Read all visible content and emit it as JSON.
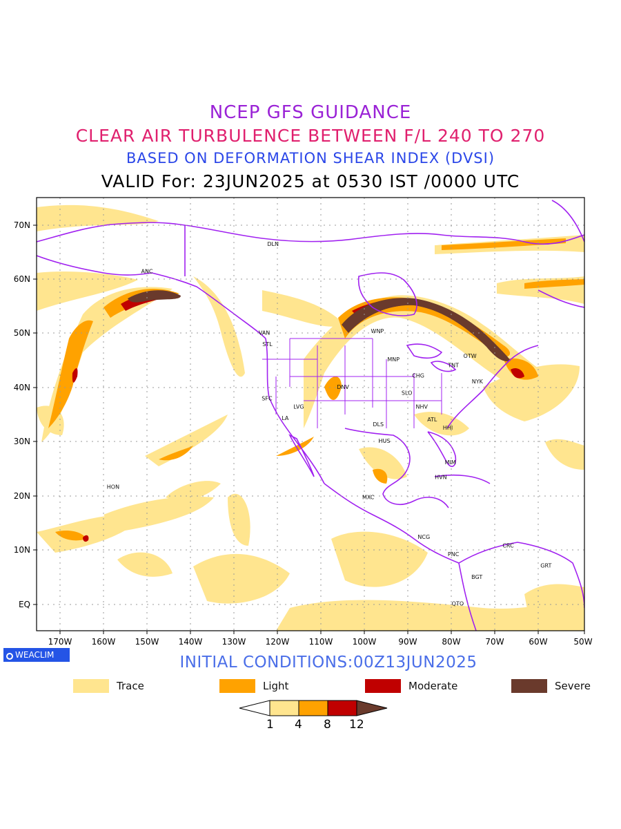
{
  "header": {
    "line1": "NCEP GFS GUIDANCE",
    "line2": "CLEAR AIR TURBULENCE BETWEEN F/L 240 TO 270",
    "line3": "BASED ON DEFORMATION SHEAR INDEX (DVSI)",
    "line4": "VALID For: 23JUN2025 at 0530 IST /0000 UTC"
  },
  "axes": {
    "lat_labels": [
      "70N",
      "60N",
      "50N",
      "40N",
      "30N",
      "20N",
      "10N",
      "EQ"
    ],
    "lon_labels": [
      "170W",
      "160W",
      "150W",
      "140W",
      "130W",
      "120W",
      "110W",
      "100W",
      "90W",
      "80W",
      "70W",
      "60W",
      "50W"
    ]
  },
  "stations": [
    {
      "code": "DLN",
      "lon": -121,
      "lat": 66
    },
    {
      "code": "ANC",
      "lon": -150,
      "lat": 61
    },
    {
      "code": "VAN",
      "lon": -123,
      "lat": 49.7
    },
    {
      "code": "STL",
      "lon": -122.3,
      "lat": 47.6
    },
    {
      "code": "WNP",
      "lon": -97,
      "lat": 50
    },
    {
      "code": "OTW",
      "lon": -75.7,
      "lat": 45.4
    },
    {
      "code": "MNP",
      "lon": -93.3,
      "lat": 44.8
    },
    {
      "code": "TNT",
      "lon": -79.5,
      "lat": 43.7
    },
    {
      "code": "CHG",
      "lon": -87.6,
      "lat": 41.8
    },
    {
      "code": "NYK",
      "lon": -74,
      "lat": 40.7
    },
    {
      "code": "DNV",
      "lon": -104.9,
      "lat": 39.7
    },
    {
      "code": "SFC",
      "lon": -122.4,
      "lat": 37.6
    },
    {
      "code": "SLO",
      "lon": -90.2,
      "lat": 38.6
    },
    {
      "code": "LVG",
      "lon": -115.1,
      "lat": 36.1
    },
    {
      "code": "NHV",
      "lon": -86.8,
      "lat": 36.1
    },
    {
      "code": "LA",
      "lon": -118.2,
      "lat": 34
    },
    {
      "code": "DLS",
      "lon": -96.8,
      "lat": 32.8
    },
    {
      "code": "ATL",
      "lon": -84.4,
      "lat": 33.7
    },
    {
      "code": "HHI",
      "lon": -80.8,
      "lat": 32.2
    },
    {
      "code": "HUS",
      "lon": -95.4,
      "lat": 29.8
    },
    {
      "code": "MIM",
      "lon": -80.2,
      "lat": 25.8
    },
    {
      "code": "HVN",
      "lon": -82.4,
      "lat": 23.1
    },
    {
      "code": "HON",
      "lon": -157.8,
      "lat": 21.3
    },
    {
      "code": "MXC",
      "lon": -99.1,
      "lat": 19.4
    },
    {
      "code": "NCG",
      "lon": -86.3,
      "lat": 12.1
    },
    {
      "code": "CRC",
      "lon": -66.9,
      "lat": 10.5
    },
    {
      "code": "PNC",
      "lon": -79.5,
      "lat": 8.9
    },
    {
      "code": "GRT",
      "lon": -58.2,
      "lat": 6.8
    },
    {
      "code": "BGT",
      "lon": -74.1,
      "lat": 4.7
    },
    {
      "code": "QTO",
      "lon": -78.5,
      "lat": -0.2
    }
  ],
  "brand": "WEACLIM",
  "initial_conditions": "INITIAL CONDITIONS:00Z13JUN2025",
  "legend": [
    {
      "label": "Trace",
      "color": "#ffe58f"
    },
    {
      "label": "Light",
      "color": "#ffa200"
    },
    {
      "label": "Moderate",
      "color": "#c00000"
    },
    {
      "label": "Severe",
      "color": "#6a3a2c"
    }
  ],
  "colorbar": {
    "ticks": [
      "1",
      "4",
      "8",
      "12"
    ],
    "colors": [
      "#ffffff",
      "#ffe58f",
      "#ffa200",
      "#c00000",
      "#6a3a2c"
    ]
  },
  "colors": {
    "coastline": "#a020f0",
    "title1": "#9a22d6",
    "title2": "#e0206e",
    "title3": "#2a46e8"
  }
}
